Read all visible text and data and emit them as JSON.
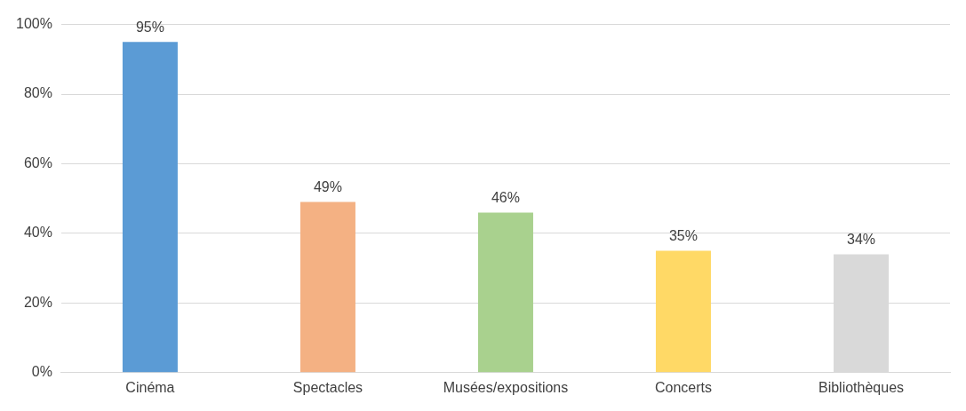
{
  "chart_data": {
    "type": "bar",
    "categories": [
      "Cinéma",
      "Spectacles",
      "Musées/expositions",
      "Concerts",
      "Bibliothèques"
    ],
    "values": [
      95,
      49,
      46,
      35,
      34
    ],
    "colors": [
      "#5b9bd5",
      "#f4b183",
      "#a9d18e",
      "#ffd966",
      "#d9d9d9"
    ],
    "value_labels": [
      "95%",
      "49%",
      "46%",
      "35%",
      "34%"
    ],
    "ylim": [
      0,
      100
    ],
    "yticks": [
      {
        "value": 0,
        "label": "0%"
      },
      {
        "value": 20,
        "label": "20%"
      },
      {
        "value": 40,
        "label": "40%"
      },
      {
        "value": 60,
        "label": "60%"
      },
      {
        "value": 80,
        "label": "80%"
      },
      {
        "value": 100,
        "label": "100%"
      }
    ],
    "grid": "y",
    "legend": false
  }
}
